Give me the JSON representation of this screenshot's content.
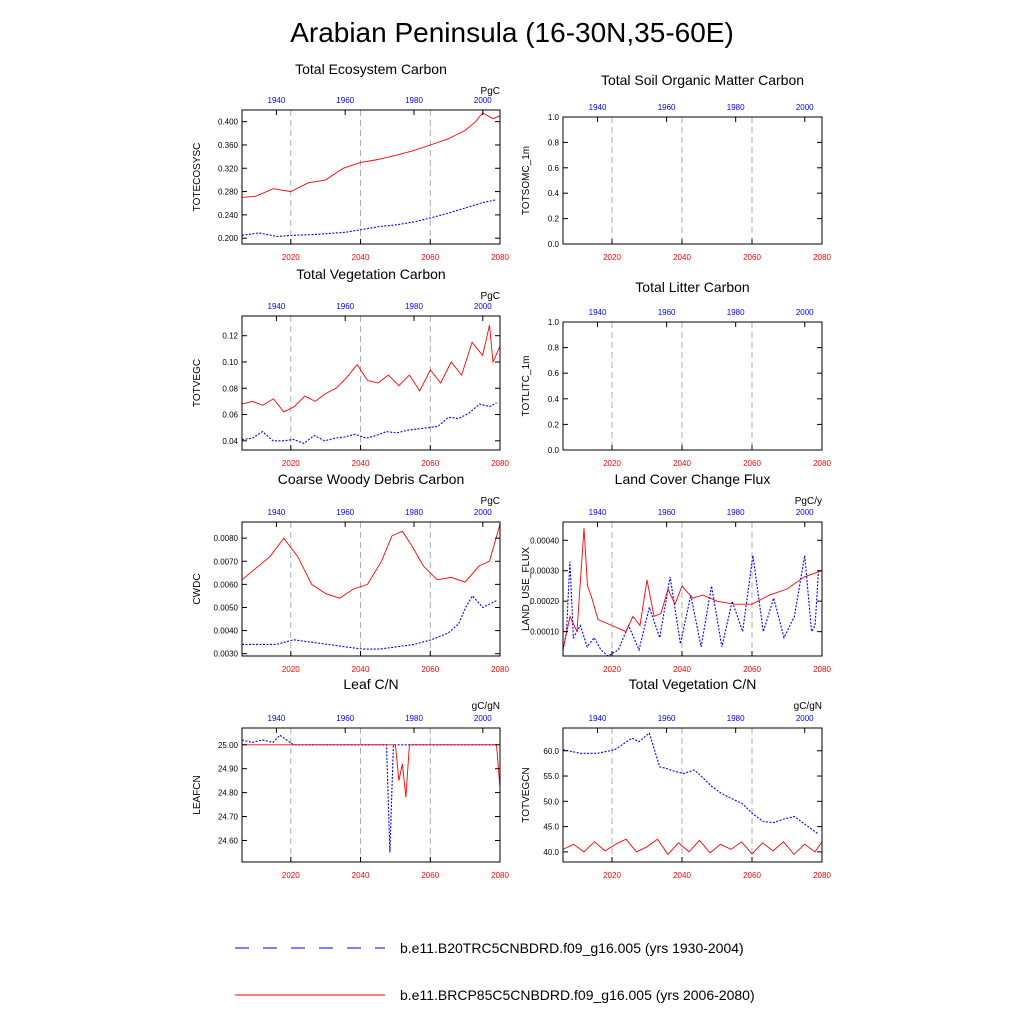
{
  "title": "Arabian Peninsula (16-30N,35-60E)",
  "colors": {
    "series1": "#0000ff",
    "series2": "#ff0000",
    "vline": "#999999"
  },
  "axes": {
    "top_ticks": [
      "1940",
      "1960",
      "1980",
      "2000"
    ],
    "bottom_ticks": [
      "2020",
      "2040",
      "2060",
      "2080"
    ]
  },
  "legend": [
    {
      "label": "b.e11.B20TRC5CNBDRD.f09_g16.005 (yrs 1930-2004)",
      "color": "#0000ff",
      "dash": true
    },
    {
      "label": "b.e11.BRCP85C5CNBDRD.f09_g16.005 (yrs 2006-2080)",
      "color": "#ff0000",
      "dash": false
    }
  ],
  "chart_data": [
    {
      "type": "line",
      "title": "Total Ecosystem Carbon",
      "unit": "PgC",
      "ylabel": "TOTECOSYSC",
      "ylim": [
        0.19,
        0.42
      ],
      "yticks": [
        0.2,
        0.24,
        0.28,
        0.32,
        0.36,
        0.4
      ],
      "ytick_labels": [
        "0.200",
        "0.240",
        "0.280",
        "0.320",
        "0.360",
        "0.400"
      ],
      "x_top": [
        1930,
        2005
      ],
      "x_bottom": [
        2006,
        2080
      ],
      "series": [
        {
          "axis": "top",
          "x": [
            1930,
            1935,
            1940,
            1945,
            1950,
            1955,
            1960,
            1965,
            1970,
            1975,
            1980,
            1985,
            1990,
            1995,
            2000,
            2004
          ],
          "y": [
            0.205,
            0.209,
            0.203,
            0.205,
            0.206,
            0.208,
            0.21,
            0.215,
            0.22,
            0.223,
            0.228,
            0.235,
            0.243,
            0.252,
            0.261,
            0.266
          ]
        },
        {
          "axis": "bottom",
          "x": [
            2006,
            2010,
            2015,
            2020,
            2025,
            2030,
            2035,
            2040,
            2045,
            2050,
            2055,
            2060,
            2065,
            2070,
            2073,
            2075,
            2078,
            2080
          ],
          "y": [
            0.27,
            0.272,
            0.285,
            0.28,
            0.295,
            0.3,
            0.32,
            0.33,
            0.335,
            0.342,
            0.35,
            0.36,
            0.37,
            0.385,
            0.4,
            0.415,
            0.405,
            0.41
          ]
        }
      ]
    },
    {
      "type": "line",
      "title": "Total Soil Organic Matter Carbon",
      "ylabel": "TOTSOMC_1m",
      "ylim": [
        0,
        1
      ],
      "yticks": [
        0,
        0.2,
        0.4,
        0.6,
        0.8,
        1.0
      ],
      "ytick_labels": [
        "0.0",
        "0.2",
        "0.4",
        "0.6",
        "0.8",
        "1.0"
      ],
      "x_top": [
        1930,
        2005
      ],
      "x_bottom": [
        2006,
        2080
      ],
      "series": []
    },
    {
      "type": "line",
      "title": "Total Vegetation Carbon",
      "unit": "PgC",
      "ylabel": "TOTVEGC",
      "ylim": [
        0.033,
        0.135
      ],
      "yticks": [
        0.04,
        0.06,
        0.08,
        0.1,
        0.12
      ],
      "ytick_labels": [
        "0.04",
        "0.06",
        "0.08",
        "0.10",
        "0.12"
      ],
      "x_top": [
        1930,
        2005
      ],
      "x_bottom": [
        2006,
        2080
      ],
      "series": [
        {
          "axis": "top",
          "x": [
            1930,
            1933,
            1936,
            1939,
            1942,
            1945,
            1948,
            1951,
            1954,
            1957,
            1960,
            1963,
            1966,
            1969,
            1972,
            1975,
            1978,
            1981,
            1984,
            1987,
            1990,
            1993,
            1996,
            1999,
            2002,
            2004
          ],
          "y": [
            0.041,
            0.042,
            0.047,
            0.04,
            0.04,
            0.041,
            0.038,
            0.044,
            0.04,
            0.042,
            0.043,
            0.045,
            0.042,
            0.044,
            0.047,
            0.046,
            0.048,
            0.049,
            0.05,
            0.051,
            0.058,
            0.057,
            0.061,
            0.068,
            0.066,
            0.069
          ]
        },
        {
          "axis": "bottom",
          "x": [
            2006,
            2009,
            2012,
            2015,
            2018,
            2021,
            2024,
            2027,
            2030,
            2033,
            2036,
            2039,
            2042,
            2045,
            2048,
            2051,
            2054,
            2057,
            2060,
            2063,
            2066,
            2069,
            2072,
            2075,
            2077,
            2078,
            2080
          ],
          "y": [
            0.068,
            0.07,
            0.067,
            0.072,
            0.062,
            0.066,
            0.074,
            0.07,
            0.076,
            0.08,
            0.088,
            0.098,
            0.086,
            0.084,
            0.09,
            0.082,
            0.09,
            0.078,
            0.094,
            0.084,
            0.1,
            0.09,
            0.115,
            0.105,
            0.128,
            0.1,
            0.112
          ]
        }
      ]
    },
    {
      "type": "line",
      "title": "Total Litter Carbon",
      "ylabel": "TOTLITC_1m",
      "ylim": [
        0,
        1
      ],
      "yticks": [
        0,
        0.2,
        0.4,
        0.6,
        0.8,
        1.0
      ],
      "ytick_labels": [
        "0.0",
        "0.2",
        "0.4",
        "0.6",
        "0.8",
        "1.0"
      ],
      "x_top": [
        1930,
        2005
      ],
      "x_bottom": [
        2006,
        2080
      ],
      "series": []
    },
    {
      "type": "line",
      "title": "Coarse Woody Debris Carbon",
      "unit": "PgC",
      "ylabel": "CWDC",
      "ylim": [
        0.0029,
        0.0087
      ],
      "yticks": [
        0.003,
        0.004,
        0.005,
        0.006,
        0.007,
        0.008
      ],
      "ytick_labels": [
        "0.0030",
        "0.0040",
        "0.0050",
        "0.0060",
        "0.0070",
        "0.0080"
      ],
      "x_top": [
        1930,
        2005
      ],
      "x_bottom": [
        2006,
        2080
      ],
      "series": [
        {
          "axis": "top",
          "x": [
            1930,
            1935,
            1940,
            1945,
            1950,
            1955,
            1960,
            1965,
            1970,
            1975,
            1980,
            1985,
            1990,
            1993,
            1995,
            1997,
            2000,
            2004
          ],
          "y": [
            0.0034,
            0.0034,
            0.0034,
            0.0036,
            0.0035,
            0.0034,
            0.0033,
            0.0032,
            0.0032,
            0.0033,
            0.0034,
            0.0036,
            0.0039,
            0.0043,
            0.005,
            0.0055,
            0.005,
            0.0053
          ]
        },
        {
          "axis": "bottom",
          "x": [
            2006,
            2010,
            2014,
            2018,
            2022,
            2026,
            2030,
            2034,
            2038,
            2042,
            2046,
            2049,
            2052,
            2055,
            2058,
            2062,
            2066,
            2070,
            2074,
            2077,
            2080
          ],
          "y": [
            0.0062,
            0.0067,
            0.0072,
            0.008,
            0.0072,
            0.006,
            0.0056,
            0.0054,
            0.0058,
            0.006,
            0.007,
            0.0081,
            0.0083,
            0.0076,
            0.0068,
            0.0062,
            0.0063,
            0.0061,
            0.0068,
            0.007,
            0.0086
          ]
        }
      ]
    },
    {
      "type": "line",
      "title": "Land Cover Change Flux",
      "unit": "PgC/y",
      "ylabel": "LAND_USE_FLUX",
      "ylim": [
        2e-05,
        0.00046
      ],
      "yticks": [
        0.0001,
        0.0002,
        0.0003,
        0.0004
      ],
      "ytick_labels": [
        "0.00010",
        "0.00020",
        "0.00030",
        "0.00040"
      ],
      "x_top": [
        1930,
        2005
      ],
      "x_bottom": [
        2006,
        2080
      ],
      "series": [
        {
          "axis": "top",
          "x": [
            1930,
            1931,
            1932,
            1933,
            1935,
            1937,
            1939,
            1941,
            1943,
            1946,
            1949,
            1952,
            1955,
            1958,
            1961,
            1964,
            1967,
            1970,
            1973,
            1976,
            1979,
            1982,
            1985,
            1988,
            1991,
            1994,
            1997,
            2000,
            2002,
            2003,
            2004
          ],
          "y": [
            4e-05,
            0.0001,
            0.00033,
            8e-05,
            0.00012,
            5e-05,
            8e-05,
            4e-05,
            2e-05,
            4e-05,
            0.00012,
            4e-05,
            0.00018,
            8e-05,
            0.00028,
            6e-05,
            0.00022,
            5e-05,
            0.00025,
            5e-05,
            0.0002,
            0.0001,
            0.00035,
            0.0001,
            0.00021,
            8e-05,
            0.00015,
            0.00035,
            0.0001,
            0.00012,
            0.0003
          ]
        },
        {
          "axis": "bottom",
          "x": [
            2006,
            2008,
            2010,
            2012,
            2013,
            2014,
            2016,
            2020,
            2024,
            2026,
            2028,
            2030,
            2032,
            2034,
            2036,
            2038,
            2040,
            2043,
            2046,
            2050,
            2055,
            2060,
            2065,
            2070,
            2075,
            2080
          ],
          "y": [
            4e-05,
            0.00015,
            0.0001,
            0.00044,
            0.00025,
            0.00022,
            0.00014,
            0.00012,
            0.0001,
            0.00015,
            0.00012,
            0.00027,
            0.00015,
            0.00016,
            0.00024,
            0.00019,
            0.00025,
            0.00021,
            0.00022,
            0.0002,
            0.00019,
            0.00019,
            0.00022,
            0.00024,
            0.00028,
            0.0003
          ]
        }
      ]
    },
    {
      "type": "line",
      "title": "Leaf C/N",
      "unit": "gC/gN",
      "ylabel": "LEAFCN",
      "ylim": [
        24.51,
        25.07
      ],
      "yticks": [
        24.6,
        24.7,
        24.8,
        24.9,
        25.0
      ],
      "ytick_labels": [
        "24.60",
        "24.70",
        "24.80",
        "24.90",
        "25.00"
      ],
      "x_top": [
        1930,
        2005
      ],
      "x_bottom": [
        2006,
        2080
      ],
      "series": [
        {
          "axis": "top",
          "x": [
            1930,
            1933,
            1936,
            1939,
            1941,
            1943,
            1945,
            1948,
            1960,
            1970,
            1972,
            1973,
            1974,
            1976,
            1990,
            2004
          ],
          "y": [
            25.02,
            25.01,
            25.02,
            25.01,
            25.04,
            25.02,
            25.0,
            25.0,
            25.0,
            25.0,
            25.0,
            24.55,
            25.0,
            25.0,
            25.0,
            25.0
          ]
        },
        {
          "axis": "bottom",
          "x": [
            2006,
            2040,
            2050,
            2051,
            2052,
            2053,
            2054,
            2070,
            2079,
            2080
          ],
          "y": [
            25.0,
            25.0,
            25.0,
            24.85,
            24.92,
            24.78,
            25.0,
            25.0,
            25.0,
            24.82
          ]
        }
      ]
    },
    {
      "type": "line",
      "title": "Total Vegetation C/N",
      "unit": "gC/gN",
      "ylabel": "TOTVEGCN",
      "ylim": [
        38,
        64.5
      ],
      "yticks": [
        40,
        45,
        50,
        55,
        60
      ],
      "ytick_labels": [
        "40.0",
        "45.0",
        "50.0",
        "55.0",
        "60.0"
      ],
      "x_top": [
        1930,
        2005
      ],
      "x_bottom": [
        2006,
        2080
      ],
      "series": [
        {
          "axis": "top",
          "x": [
            1930,
            1935,
            1940,
            1945,
            1950,
            1952,
            1955,
            1958,
            1960,
            1962,
            1965,
            1968,
            1970,
            1973,
            1976,
            1979,
            1982,
            1985,
            1988,
            1991,
            1994,
            1997,
            2000,
            2004
          ],
          "y": [
            60.2,
            59.5,
            59.5,
            60.2,
            62.5,
            61.8,
            63.5,
            56.8,
            56.5,
            56.0,
            55.5,
            56.2,
            55.0,
            53.0,
            51.5,
            50.5,
            49.5,
            47.5,
            46.0,
            45.8,
            46.5,
            47.0,
            45.5,
            43.5
          ]
        },
        {
          "axis": "bottom",
          "x": [
            2006,
            2009,
            2012,
            2015,
            2018,
            2021,
            2024,
            2027,
            2030,
            2033,
            2036,
            2039,
            2042,
            2045,
            2048,
            2051,
            2054,
            2057,
            2060,
            2063,
            2066,
            2069,
            2072,
            2075,
            2078,
            2080
          ],
          "y": [
            40.5,
            41.5,
            40.0,
            42.0,
            40.2,
            41.5,
            42.5,
            40.0,
            41.0,
            42.5,
            39.5,
            41.8,
            40.0,
            42.3,
            39.8,
            41.5,
            40.5,
            42.0,
            39.6,
            41.8,
            40.2,
            42.0,
            39.5,
            41.5,
            40.0,
            42.0
          ]
        }
      ]
    }
  ]
}
